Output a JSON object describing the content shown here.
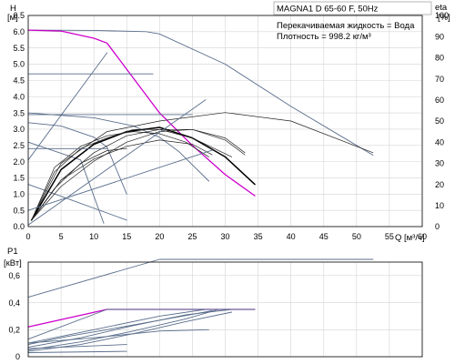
{
  "header": {
    "title": "MAGNA1 D 65-60 F, 50Hz",
    "medium": "Перекачиваемая жидкость = Вода",
    "density": "Плотность = 998.2 кг/м³"
  },
  "colors": {
    "curve": "#5a6e8c",
    "selected": "#cc00cc",
    "bold": "#000000",
    "grid": "#d4d4d4",
    "axis": "#000000"
  },
  "chart_data": [
    {
      "type": "line",
      "name": "head",
      "ylabel": "H",
      "yunit": "[м]",
      "xlabel": "Q",
      "xunit": "[м³/ч]",
      "y2label": "eta",
      "y2unit": "[%]",
      "xlim": [
        0,
        60
      ],
      "ylim": [
        0,
        6.5
      ],
      "y2lim": [
        0,
        100
      ],
      "grid": true,
      "xticks": [
        "0",
        "5",
        "10",
        "15",
        "20",
        "25",
        "30",
        "35",
        "40",
        "45",
        "50",
        "55",
        "60"
      ],
      "yticks": [
        "0.0",
        "0.5",
        "1.0",
        "1.5",
        "2.0",
        "2.5",
        "3.0",
        "3.5",
        "4.0",
        "4.5",
        "5.0",
        "5.5",
        "6.0",
        "6.5"
      ],
      "y2ticks": [
        "0",
        "10",
        "20",
        "30",
        "40",
        "50",
        "60",
        "70",
        "80",
        "90",
        "100"
      ],
      "series": [
        {
          "role": "hq",
          "x": [
            0,
            10,
            18,
            20,
            30,
            40,
            52.5
          ],
          "y": [
            6.05,
            6.04,
            6.0,
            5.93,
            5.0,
            3.7,
            2.2
          ]
        },
        {
          "role": "hq-selected",
          "x": [
            0,
            5,
            10,
            12,
            20,
            25,
            30,
            34.5
          ],
          "y": [
            6.05,
            6.02,
            5.8,
            5.65,
            3.5,
            2.5,
            1.6,
            0.95
          ]
        },
        {
          "role": "hq",
          "x": [
            0,
            5,
            10,
            12,
            15
          ],
          "y": [
            3.2,
            3.1,
            2.75,
            2.45,
            1.0
          ]
        },
        {
          "role": "hq",
          "x": [
            0,
            10,
            16,
            20,
            23,
            27.5
          ],
          "y": [
            3.5,
            3.35,
            3.1,
            2.75,
            2.3,
            1.4
          ]
        },
        {
          "role": "hq",
          "x": [
            0,
            15
          ],
          "y": [
            1.3,
            0.2
          ]
        },
        {
          "role": "hq",
          "x": [
            0,
            8,
            11.5
          ],
          "y": [
            2.6,
            2.05,
            0.1
          ]
        },
        {
          "role": "eta",
          "x": [
            0.5,
            5,
            12,
            20,
            30,
            40,
            52.5
          ],
          "y2": [
            3,
            30,
            45,
            50,
            54,
            50,
            35
          ]
        },
        {
          "role": "eta-bold",
          "x": [
            0.5,
            5,
            10,
            15,
            20,
            25,
            30,
            34.5
          ],
          "y2": [
            3,
            27,
            39,
            45,
            47,
            42,
            33,
            20
          ]
        },
        {
          "role": "eta",
          "x": [
            0.5,
            4,
            8,
            12,
            16,
            20,
            24,
            27.5
          ],
          "y2": [
            3,
            28,
            38,
            43,
            45,
            44,
            40,
            33
          ]
        },
        {
          "role": "eta",
          "x": [
            0.5,
            4,
            8,
            12,
            16,
            20,
            25,
            31
          ],
          "y2": [
            3,
            26,
            37,
            42,
            46,
            46,
            42,
            33
          ]
        },
        {
          "role": "eta",
          "x": [
            0.5,
            5,
            10,
            15,
            20,
            25,
            30,
            33
          ],
          "y2": [
            3,
            22,
            35,
            43,
            46,
            46,
            41,
            34
          ]
        },
        {
          "role": "eta",
          "x": [
            0.5,
            5,
            10,
            15,
            20,
            25,
            30,
            33
          ],
          "y2": [
            3,
            19,
            31,
            40,
            45,
            46,
            42,
            35
          ]
        },
        {
          "role": "eta",
          "x": [
            0.5,
            4,
            8,
            12,
            15
          ],
          "y2": [
            3,
            18,
            30,
            36,
            37
          ]
        },
        {
          "role": "eta",
          "x": [
            0.5,
            5,
            10,
            15,
            20,
            25,
            28
          ],
          "y2": [
            3,
            22,
            32,
            38,
            41,
            39,
            34
          ]
        },
        {
          "role": "sys",
          "x": [
            0,
            12
          ],
          "y": [
            2.05,
            5.35
          ]
        },
        {
          "role": "sys",
          "x": [
            0,
            27
          ],
          "y": [
            0.05,
            3.9
          ]
        },
        {
          "role": "sys",
          "x": [
            0,
            28
          ],
          "y": [
            0.5,
            2.35
          ]
        },
        {
          "role": "level",
          "x": [
            0,
            19
          ],
          "y": [
            4.7,
            4.7
          ]
        },
        {
          "role": "level",
          "x": [
            0,
            25
          ],
          "y": [
            3.45,
            3.45
          ]
        },
        {
          "role": "level",
          "x": [
            0,
            12
          ],
          "y": [
            2.4,
            2.4
          ]
        }
      ]
    },
    {
      "type": "line",
      "name": "power",
      "ylabel": "P1",
      "yunit": "[кВт]",
      "xlim": [
        0,
        60
      ],
      "ylim": [
        0,
        0.7
      ],
      "grid": true,
      "yticks": [
        "0",
        "0,2",
        "0,4",
        "0,6"
      ],
      "series": [
        {
          "role": "p",
          "x": [
            0,
            20,
            52.5
          ],
          "y": [
            0.44,
            0.72,
            0.72
          ]
        },
        {
          "role": "p-selected",
          "x": [
            0,
            12,
            34.5
          ],
          "y": [
            0.22,
            0.35,
            0.35
          ]
        },
        {
          "role": "p",
          "x": [
            0,
            12,
            34.5
          ],
          "y": [
            0.13,
            0.35,
            0.35
          ]
        },
        {
          "role": "p",
          "x": [
            0,
            10,
            20,
            27,
            34.5
          ],
          "y": [
            0.1,
            0.2,
            0.3,
            0.35,
            0.35
          ]
        },
        {
          "role": "p",
          "x": [
            0,
            8,
            16,
            24,
            31,
            34.5
          ],
          "y": [
            0.07,
            0.14,
            0.23,
            0.31,
            0.35,
            0.35
          ]
        },
        {
          "role": "p",
          "x": [
            0,
            8,
            16,
            24,
            29,
            34.5
          ],
          "y": [
            0.05,
            0.11,
            0.19,
            0.28,
            0.35,
            0.35
          ]
        },
        {
          "role": "p",
          "x": [
            0,
            6,
            12,
            20,
            28
          ],
          "y": [
            0.09,
            0.15,
            0.2,
            0.27,
            0.34
          ]
        },
        {
          "role": "p",
          "x": [
            0,
            10,
            20,
            27.5
          ],
          "y": [
            0.1,
            0.14,
            0.19,
            0.2
          ]
        },
        {
          "role": "p",
          "x": [
            0,
            8,
            16,
            24,
            31
          ],
          "y": [
            0.04,
            0.09,
            0.17,
            0.26,
            0.33
          ]
        },
        {
          "role": "p",
          "x": [
            0,
            5,
            10,
            15
          ],
          "y": [
            0.06,
            0.07,
            0.08,
            0.09
          ]
        },
        {
          "role": "p",
          "x": [
            0,
            15
          ],
          "y": [
            0.03,
            0.04
          ]
        }
      ]
    }
  ]
}
